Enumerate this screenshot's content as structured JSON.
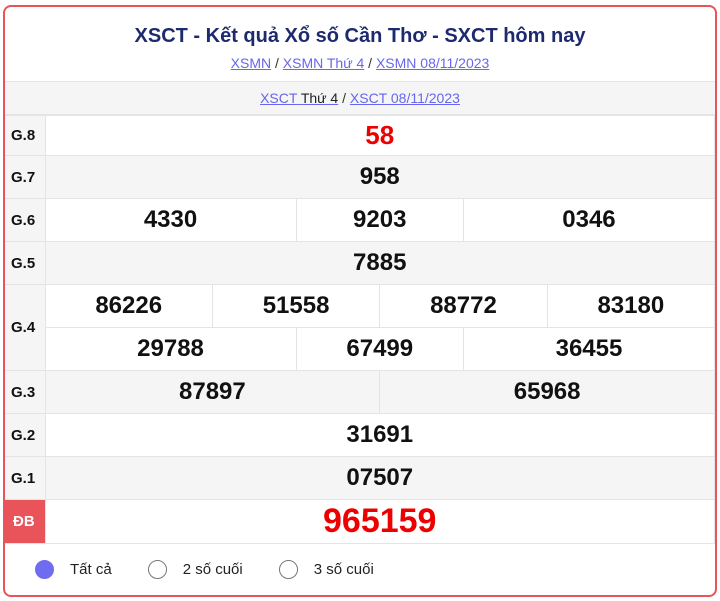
{
  "header": {
    "title": "XSCT - Kết quả Xổ số Cần Thơ - SXCT hôm nay",
    "links": [
      "XSMN",
      "XSMN Thứ 4",
      "XSMN 08/11/2023"
    ]
  },
  "sub": {
    "link1_a": "XSCT",
    "link1_b": "Thứ 4",
    "link2": "XSCT 08/11/2023"
  },
  "prizes": {
    "g8": {
      "label": "G.8",
      "values": [
        "58"
      ]
    },
    "g7": {
      "label": "G.7",
      "values": [
        "958"
      ]
    },
    "g6": {
      "label": "G.6",
      "values": [
        "4330",
        "9203",
        "0346"
      ]
    },
    "g5": {
      "label": "G.5",
      "values": [
        "7885"
      ]
    },
    "g4": {
      "label": "G.4",
      "values": [
        "86226",
        "51558",
        "88772",
        "83180",
        "29788",
        "67499",
        "36455"
      ]
    },
    "g3": {
      "label": "G.3",
      "values": [
        "87897",
        "65968"
      ]
    },
    "g2": {
      "label": "G.2",
      "values": [
        "31691"
      ]
    },
    "g1": {
      "label": "G.1",
      "values": [
        "07507"
      ]
    },
    "db": {
      "label": "ĐB",
      "values": [
        "965159"
      ]
    }
  },
  "filters": [
    {
      "label": "Tất cả",
      "selected": true
    },
    {
      "label": "2 số cuối",
      "selected": false
    },
    {
      "label": "3 số cuối",
      "selected": false
    }
  ],
  "colors": {
    "accent": "#e8545a",
    "prize_red": "#ee0000",
    "link": "#6666ee",
    "radio": "#6f6cf0"
  }
}
